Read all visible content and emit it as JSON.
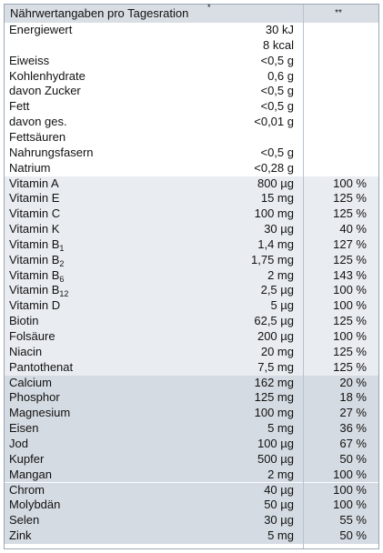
{
  "header": {
    "title": "Nährwertangaben pro Tagesration",
    "star": "*",
    "dstar": "**"
  },
  "rows": [
    {
      "name": "Energiewert",
      "amount": "30 kJ",
      "pct": "",
      "group": "white"
    },
    {
      "name": "",
      "amount": "8 kcal",
      "pct": "",
      "group": "white"
    },
    {
      "name": "Eiweiss",
      "amount": "<0,5 g",
      "pct": "",
      "group": "white"
    },
    {
      "name": "Kohlenhydrate",
      "amount": "0,6 g",
      "pct": "",
      "group": "white"
    },
    {
      "name": "davon Zucker",
      "amount": "<0,5 g",
      "pct": "",
      "group": "white"
    },
    {
      "name": "Fett",
      "amount": "<0,5 g",
      "pct": "",
      "group": "white"
    },
    {
      "name": "davon ges.",
      "amount": "<0,01 g",
      "pct": "",
      "group": "white"
    },
    {
      "name": "Fettsäuren",
      "amount": "",
      "pct": "",
      "group": "white"
    },
    {
      "name": "Nahrungsfasern",
      "amount": "<0,5 g",
      "pct": "",
      "group": "white"
    },
    {
      "name": "Natrium",
      "amount": "<0,28 g",
      "pct": "",
      "group": "white"
    },
    {
      "name": "Vitamin A",
      "amount": "800 µg",
      "pct": "100 %",
      "group": "vit"
    },
    {
      "name": "Vitamin E",
      "amount": "15 mg",
      "pct": "125 %",
      "group": "vit"
    },
    {
      "name": "Vitamin C",
      "amount": "100 mg",
      "pct": "125 %",
      "group": "vit"
    },
    {
      "name": "Vitamin K",
      "amount": "30 µg",
      "pct": "40 %",
      "group": "vit"
    },
    {
      "name": "Vitamin B",
      "sub": "1",
      "amount": "1,4 mg",
      "pct": "127 %",
      "group": "vit"
    },
    {
      "name": "Vitamin B",
      "sub": "2",
      "amount": "1,75 mg",
      "pct": "125 %",
      "group": "vit"
    },
    {
      "name": "Vitamin B",
      "sub": "6",
      "amount": "2 mg",
      "pct": "143 %",
      "group": "vit"
    },
    {
      "name": "Vitamin B",
      "sub": "12",
      "amount": "2,5 µg",
      "pct": "100 %",
      "group": "vit"
    },
    {
      "name": "Vitamin D",
      "amount": "5 µg",
      "pct": "100 %",
      "group": "vit"
    },
    {
      "name": "Biotin",
      "amount": "62,5 µg",
      "pct": "125 %",
      "group": "vit"
    },
    {
      "name": "Folsäure",
      "amount": "200 µg",
      "pct": "100 %",
      "group": "vit"
    },
    {
      "name": "Niacin",
      "amount": "20 mg",
      "pct": "125 %",
      "group": "vit"
    },
    {
      "name": "Pantothenat",
      "amount": "7,5 mg",
      "pct": "125 %",
      "group": "vit"
    },
    {
      "name": "Calcium",
      "amount": "162 mg",
      "pct": "20 %",
      "group": "min"
    },
    {
      "name": "Phosphor",
      "amount": "125 mg",
      "pct": "18 %",
      "group": "min"
    },
    {
      "name": "Magnesium",
      "amount": "100 mg",
      "pct": "27 %",
      "group": "min"
    },
    {
      "name": "Eisen",
      "amount": "5 mg",
      "pct": "36 %",
      "group": "min"
    },
    {
      "name": "Jod",
      "amount": "100 µg",
      "pct": "67 %",
      "group": "min"
    },
    {
      "name": "Kupfer",
      "amount": "500 µg",
      "pct": "50 %",
      "group": "min"
    },
    {
      "name": "Mangan",
      "amount": "2 mg",
      "pct": "100 %",
      "group": "min"
    },
    {
      "name": "Chrom",
      "amount": "40 µg",
      "pct": "100 %",
      "group": "min"
    },
    {
      "name": "Molybdän",
      "amount": "50 µg",
      "pct": "100 %",
      "group": "min"
    },
    {
      "name": "Selen",
      "amount": "30 µg",
      "pct": "55 %",
      "group": "min"
    },
    {
      "name": "Zink",
      "amount": "5 mg",
      "pct": "50 %",
      "group": "min"
    }
  ]
}
